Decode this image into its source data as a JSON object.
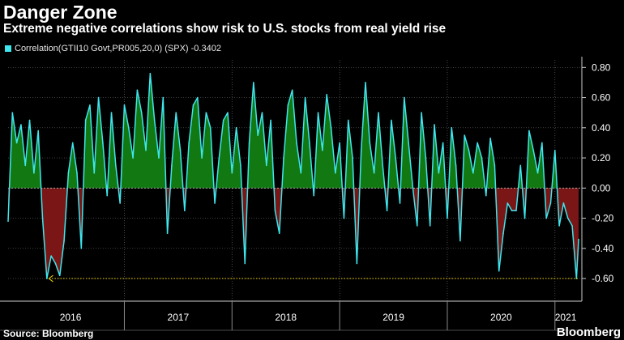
{
  "title": "Danger Zone",
  "subtitle": "Extreme negative correlations show risk to U.S. stocks from real yield rise",
  "legend": {
    "label": "Correlation(GTII10 Govt,PR005,20,0) (SPX) -0.3402",
    "color": "#3fe6ee"
  },
  "source": "Source: Bloomberg",
  "brand": "Bloomberg",
  "colors": {
    "line": "#3fe6ee",
    "positive_fill": "#127812",
    "negative_fill": "#7a1616",
    "threshold": "#e0c000",
    "grid": "#666666"
  },
  "chart_data": {
    "type": "area",
    "title": "Danger Zone",
    "x_unit": "year (decimal)",
    "xlim": [
      2015.92,
      2021.25
    ],
    "ylim": [
      -0.75,
      0.85
    ],
    "y_ticks": [
      0.8,
      0.6,
      0.4,
      0.2,
      0.0,
      -0.2,
      -0.4,
      -0.6
    ],
    "y_tick_labels": [
      "0.80",
      "0.60",
      "0.40",
      "0.20",
      "0.00",
      "-0.20",
      "-0.40",
      "-0.60"
    ],
    "x_tick_labels": [
      {
        "label": "2016",
        "x": 2016.5
      },
      {
        "label": "2017",
        "x": 2017.5
      },
      {
        "label": "2018",
        "x": 2018.5
      },
      {
        "label": "2019",
        "x": 2019.5
      },
      {
        "label": "2020",
        "x": 2020.5
      },
      {
        "label": "2021",
        "x": 2021.1
      }
    ],
    "year_boundaries": [
      2017,
      2018,
      2019,
      2020,
      2021
    ],
    "grid": true,
    "reference_line": -0.6,
    "last_value": -0.3402,
    "series": [
      {
        "name": "Correlation(GTII10 Govt,PR005,20,0) (SPX)",
        "x": [
          2015.92,
          2015.96,
          2016.0,
          2016.04,
          2016.08,
          2016.12,
          2016.16,
          2016.2,
          2016.24,
          2016.28,
          2016.32,
          2016.36,
          2016.4,
          2016.44,
          2016.48,
          2016.52,
          2016.56,
          2016.6,
          2016.64,
          2016.68,
          2016.72,
          2016.76,
          2016.8,
          2016.84,
          2016.88,
          2016.92,
          2016.96,
          2017.0,
          2017.04,
          2017.08,
          2017.12,
          2017.16,
          2017.2,
          2017.24,
          2017.28,
          2017.32,
          2017.36,
          2017.4,
          2017.44,
          2017.48,
          2017.52,
          2017.56,
          2017.6,
          2017.64,
          2017.68,
          2017.72,
          2017.76,
          2017.8,
          2017.84,
          2017.88,
          2017.92,
          2017.96,
          2018.0,
          2018.04,
          2018.08,
          2018.12,
          2018.16,
          2018.2,
          2018.24,
          2018.28,
          2018.32,
          2018.36,
          2018.4,
          2018.44,
          2018.48,
          2018.52,
          2018.56,
          2018.6,
          2018.64,
          2018.68,
          2018.72,
          2018.76,
          2018.8,
          2018.84,
          2018.88,
          2018.92,
          2018.96,
          2019.0,
          2019.04,
          2019.08,
          2019.12,
          2019.16,
          2019.2,
          2019.24,
          2019.28,
          2019.32,
          2019.36,
          2019.4,
          2019.44,
          2019.48,
          2019.52,
          2019.56,
          2019.6,
          2019.64,
          2019.68,
          2019.72,
          2019.76,
          2019.8,
          2019.84,
          2019.88,
          2019.92,
          2019.96,
          2020.0,
          2020.04,
          2020.08,
          2020.12,
          2020.16,
          2020.2,
          2020.24,
          2020.28,
          2020.32,
          2020.36,
          2020.4,
          2020.44,
          2020.48,
          2020.52,
          2020.56,
          2020.6,
          2020.64,
          2020.68,
          2020.72,
          2020.76,
          2020.8,
          2020.84,
          2020.88,
          2020.92,
          2020.96,
          2021.0,
          2021.04,
          2021.08,
          2021.12,
          2021.16,
          2021.2,
          2021.22
        ],
        "y": [
          -0.22,
          0.5,
          0.3,
          0.42,
          0.15,
          0.45,
          0.1,
          0.38,
          -0.2,
          -0.6,
          -0.45,
          -0.5,
          -0.58,
          -0.35,
          0.1,
          0.3,
          0.1,
          -0.4,
          0.45,
          0.55,
          0.1,
          0.6,
          0.3,
          -0.05,
          0.5,
          0.15,
          -0.1,
          0.55,
          0.4,
          0.2,
          0.65,
          0.5,
          0.25,
          0.76,
          0.45,
          0.2,
          0.6,
          -0.3,
          0.15,
          0.5,
          0.25,
          -0.15,
          0.3,
          0.55,
          0.6,
          0.2,
          0.5,
          0.4,
          -0.1,
          0.2,
          0.45,
          0.5,
          0.1,
          0.4,
          0.15,
          -0.5,
          0.3,
          0.7,
          0.35,
          0.5,
          0.15,
          0.45,
          -0.15,
          -0.3,
          0.2,
          0.55,
          0.65,
          0.3,
          0.1,
          0.6,
          0.3,
          -0.05,
          0.5,
          0.25,
          0.62,
          0.4,
          0.1,
          0.3,
          -0.2,
          0.45,
          0.2,
          -0.5,
          0.25,
          0.7,
          0.3,
          0.1,
          0.5,
          0.15,
          -0.15,
          0.45,
          0.2,
          -0.1,
          0.6,
          0.3,
          0.0,
          -0.25,
          0.5,
          0.2,
          -0.25,
          0.42,
          0.1,
          0.3,
          -0.2,
          0.4,
          0.15,
          -0.35,
          0.35,
          0.25,
          0.1,
          0.3,
          0.2,
          -0.05,
          0.33,
          0.15,
          -0.55,
          -0.3,
          -0.1,
          -0.15,
          -0.15,
          0.15,
          -0.2,
          0.38,
          0.25,
          0.1,
          0.3,
          -0.2,
          -0.1,
          0.25,
          -0.25,
          -0.1,
          -0.2,
          -0.25,
          -0.6,
          -0.34
        ]
      }
    ]
  }
}
